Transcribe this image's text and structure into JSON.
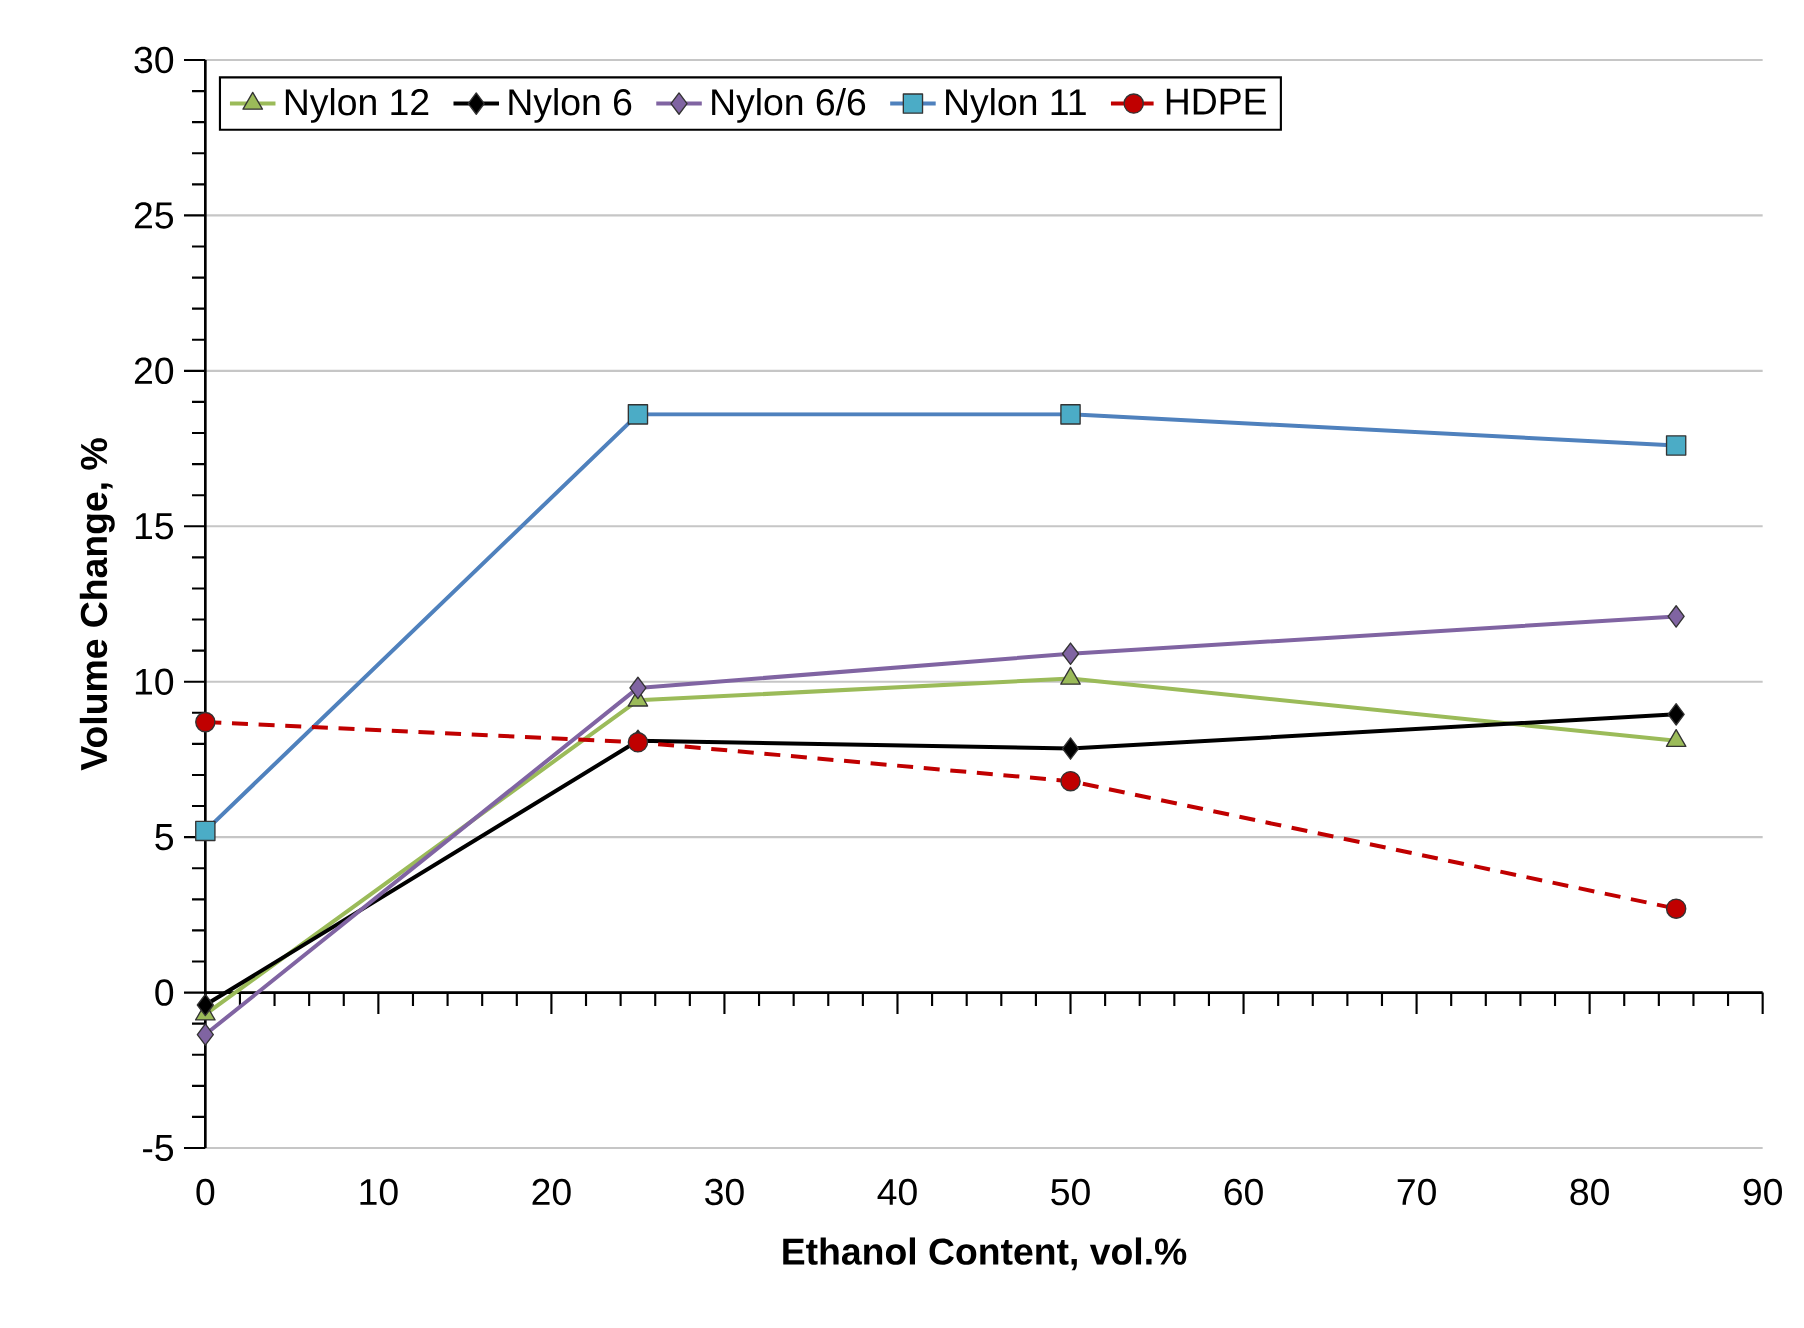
{
  "chart_data": {
    "type": "line",
    "xlabel": "Ethanol Content, vol.%",
    "ylabel": "Volume Change, %",
    "x": [
      0,
      25,
      50,
      85
    ],
    "series": [
      {
        "name": "Nylon 12",
        "color": "#9bbb59",
        "marker": "triangle",
        "line_style": "solid",
        "values": [
          -0.7,
          9.4,
          10.1,
          8.1
        ]
      },
      {
        "name": "Nylon 6",
        "color": "#000000",
        "marker": "diamond",
        "line_style": "solid",
        "values": [
          -0.4,
          8.1,
          7.85,
          8.95
        ]
      },
      {
        "name": "Nylon 6/6",
        "color": "#8064a2",
        "marker": "diamond",
        "line_style": "solid",
        "values": [
          -1.35,
          9.8,
          10.9,
          12.1
        ]
      },
      {
        "name": "Nylon 11",
        "color": "#4f81bd",
        "marker": "square",
        "line_style": "solid",
        "values": [
          5.2,
          18.6,
          18.6,
          17.6
        ]
      },
      {
        "name": "HDPE",
        "color": "#c00000",
        "marker": "circle",
        "line_style": "dashed",
        "values": [
          8.7,
          8.05,
          6.8,
          2.7
        ]
      }
    ],
    "xlim": [
      0,
      90
    ],
    "xticks": [
      0,
      10,
      20,
      30,
      40,
      50,
      60,
      70,
      80,
      90
    ],
    "ylim": [
      -5,
      30
    ],
    "yticks": [
      -5,
      0,
      5,
      10,
      15,
      20,
      25,
      30
    ],
    "grid": "y",
    "legend": "top"
  }
}
